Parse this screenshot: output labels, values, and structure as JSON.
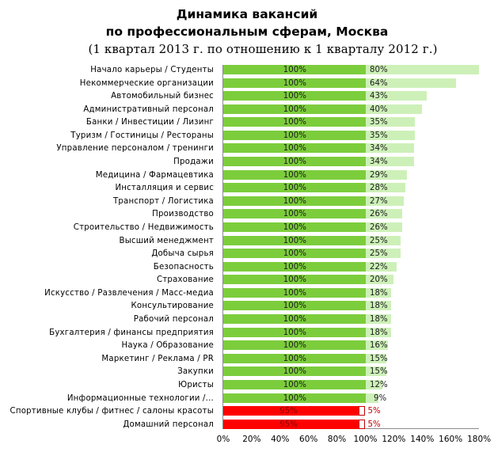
{
  "chart_data": {
    "type": "bar",
    "orientation": "horizontal",
    "stacked": true,
    "title": "Динамика вакансий",
    "subtitle_1": "по профессиональным сферам, Москва",
    "subtitle_2": "(1 квартал 2013 г. по отношению к 1 кварталу 2012 г.)",
    "xlabel": "",
    "ylabel": "",
    "xlim": [
      0,
      180
    ],
    "x_ticks": [
      "0%",
      "20%",
      "40%",
      "60%",
      "80%",
      "100%",
      "120%",
      "140%",
      "160%",
      "180%"
    ],
    "grid": false,
    "legend": null,
    "colors": {
      "base_positive": "#7ccd3c",
      "extra_positive": "#cdf0b8",
      "base_negative": "#ff0000",
      "extra_negative_border": "#c00000"
    },
    "categories": [
      "Начало карьеры / Студенты",
      "Некоммерческие организации",
      "Автомобильный бизнес",
      "Административный персонал",
      "Банки / Инвестиции / Лизинг",
      "Туризм / Гостиницы / Рестораны",
      "Управление персоналом / тренинги",
      "Продажи",
      "Медицина / Фармацевтика",
      "Инсталляция и сервис",
      "Транспорт / Логистика",
      "Производство",
      "Строительство / Недвижимость",
      "Высший менеджмент",
      "Добыча сырья",
      "Безопасность",
      "Страхование",
      "Искусство / Развлечения / Масс-медиа",
      "Консультирование",
      "Рабочий персонал",
      "Бухгалтерия / финансы предприятия",
      "Наука / Образование",
      "Маркетинг / Реклама / PR",
      "Закупки",
      "Юристы",
      "Информационные технологии /...",
      "Спортивные клубы / фитнес / салоны красоты",
      "Домашний персонал"
    ],
    "series": [
      {
        "name": "base",
        "values": [
          100,
          100,
          100,
          100,
          100,
          100,
          100,
          100,
          100,
          100,
          100,
          100,
          100,
          100,
          100,
          100,
          100,
          100,
          100,
          100,
          100,
          100,
          100,
          100,
          100,
          100,
          95,
          95
        ],
        "labels": [
          "100%",
          "100%",
          "100%",
          "100%",
          "100%",
          "100%",
          "100%",
          "100%",
          "100%",
          "100%",
          "100%",
          "100%",
          "100%",
          "100%",
          "100%",
          "100%",
          "100%",
          "100%",
          "100%",
          "100%",
          "100%",
          "100%",
          "100%",
          "100%",
          "100%",
          "100%",
          "95%",
          "95%"
        ]
      },
      {
        "name": "change",
        "values": [
          80,
          64,
          43,
          40,
          35,
          35,
          34,
          34,
          29,
          28,
          27,
          26,
          26,
          25,
          25,
          22,
          20,
          18,
          18,
          18,
          18,
          16,
          15,
          15,
          12,
          9,
          5,
          5
        ],
        "labels": [
          "80%",
          "64%",
          "43%",
          "40%",
          "35%",
          "35%",
          "34%",
          "34%",
          "29%",
          "28%",
          "27%",
          "26%",
          "26%",
          "25%",
          "25%",
          "22%",
          "20%",
          "18%",
          "18%",
          "18%",
          "18%",
          "16%",
          "15%",
          "15%",
          "12%",
          "9%",
          "5%",
          "5%"
        ],
        "negative": [
          false,
          false,
          false,
          false,
          false,
          false,
          false,
          false,
          false,
          false,
          false,
          false,
          false,
          false,
          false,
          false,
          false,
          false,
          false,
          false,
          false,
          false,
          false,
          false,
          false,
          false,
          true,
          true
        ]
      }
    ]
  }
}
